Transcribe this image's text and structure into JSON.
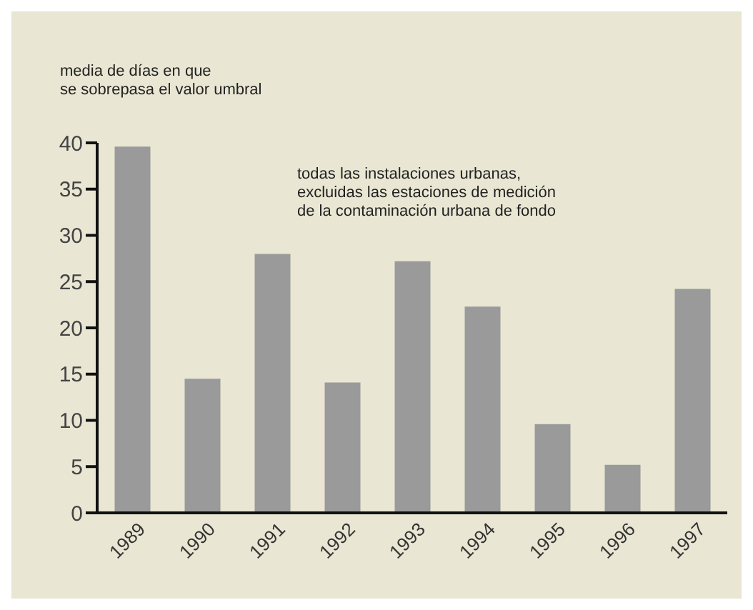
{
  "chart_data": {
    "type": "bar",
    "ylabel": "media de días en que\nse sobrepasa el valor umbral",
    "annotations": [
      "todas las instalaciones urbanas,\nexcluidas las estaciones de medición\nde la contaminación urbana de fondo"
    ],
    "categories": [
      "1989",
      "1990",
      "1991",
      "1992",
      "1993",
      "1994",
      "1995",
      "1996",
      "1997"
    ],
    "values": [
      39.6,
      14.5,
      28.0,
      14.1,
      27.2,
      22.3,
      9.6,
      5.2,
      24.2
    ],
    "color": "#9a9a9a",
    "ylim": [
      0,
      40
    ],
    "yticks": [
      0,
      5,
      10,
      15,
      20,
      25,
      30,
      35,
      40
    ],
    "grid": false
  }
}
